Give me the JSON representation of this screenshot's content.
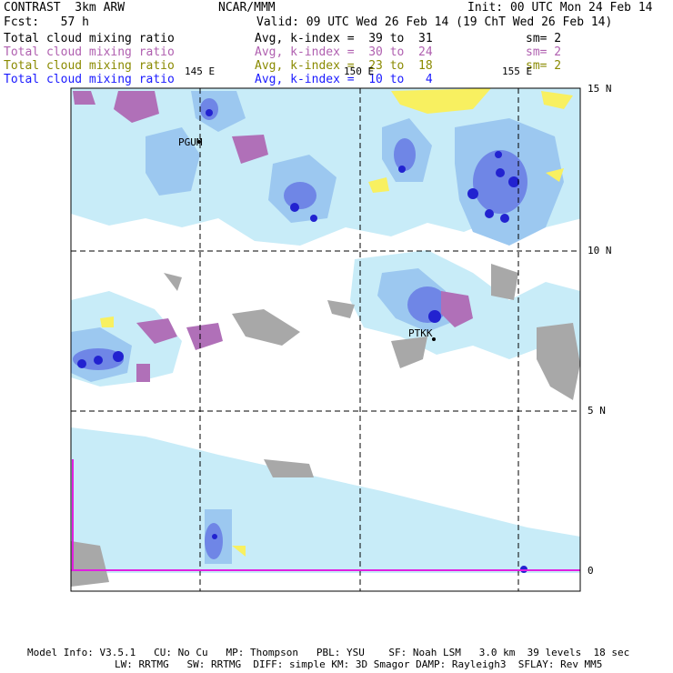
{
  "header": {
    "title_left": "CONTRAST  3km ARW",
    "title_center": "NCAR/MMM",
    "init": "Init: 00 UTC Mon 24 Feb 14",
    "fcst": "Fcst:   57 h",
    "valid": "Valid: 09 UTC Wed 26 Feb 14 (19 ChT Wed 26 Feb 14)"
  },
  "fields": [
    {
      "name": "Total cloud mixing ratio",
      "stat": "Avg, k-index =  39 to  31",
      "sm": "sm= 2",
      "color": "#000000"
    },
    {
      "name": "Total cloud mixing ratio",
      "stat": "Avg, k-index =  30 to  24",
      "sm": "sm= 2",
      "color": "#b060b0"
    },
    {
      "name": "Total cloud mixing ratio",
      "stat": "Avg, k-index =  23 to  18",
      "sm": "sm= 2",
      "color": "#8a8a00"
    },
    {
      "name": "Total cloud mixing ratio",
      "stat": "Avg, k-index =  10 to   4",
      "sm": "",
      "color": "#1a1aff"
    }
  ],
  "map": {
    "lon_labels": [
      "145 E",
      "150 E",
      "155 E"
    ],
    "lat_labels": [
      "15 N",
      "10 N",
      "5 N",
      "0"
    ],
    "stations": [
      "PGUM",
      "PTKK"
    ],
    "colors": {
      "light_cloud": "#c8ecf8",
      "medium_cloud": "#9cc8f0",
      "blue_cloud": "#6f86e6",
      "deep_blue": "#2222d0",
      "gray_cloud": "#a8a8a8",
      "purple_cloud": "#b070b8",
      "yellow_cloud": "#f8f060",
      "magenta_line": "#e020e0"
    }
  },
  "footer": {
    "line1": "Model Info: V3.5.1   CU: No Cu   MP: Thompson   PBL: YSU    SF: Noah LSM   3.0 km  39 levels  18 sec",
    "line2": "LW: RRTMG   SW: RRTMG  DIFF: simple KM: 3D Smagor DAMP: Rayleigh3  SFLAY: Rev MM5"
  }
}
